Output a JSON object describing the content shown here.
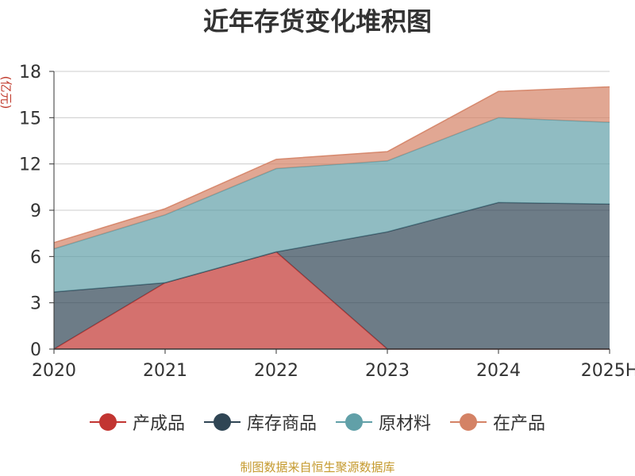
{
  "chart_data": {
    "type": "area",
    "stacked": true,
    "title": "近年存货变化堆积图",
    "ylabel": "(亿元)",
    "xlabel": "",
    "x": [
      "2020",
      "2021",
      "2022",
      "2023",
      "2024",
      "2025H"
    ],
    "ylim": [
      0,
      18
    ],
    "yticks": [
      "0",
      "3",
      "6",
      "9",
      "12",
      "15",
      "18"
    ],
    "grid": true,
    "legend_position": "bottom",
    "series": [
      {
        "name": "产成品",
        "color": "#c23531",
        "values": [
          0.0,
          4.3,
          6.3,
          0.0,
          0.0,
          0.0
        ]
      },
      {
        "name": "库存商品",
        "color": "#2f4554",
        "values": [
          3.7,
          0.0,
          0.0,
          7.6,
          9.5,
          9.4
        ]
      },
      {
        "name": "原材料",
        "color": "#61a0a8",
        "values": [
          2.8,
          4.4,
          5.4,
          4.6,
          5.5,
          5.3
        ]
      },
      {
        "name": "在产品",
        "color": "#d48265",
        "values": [
          0.4,
          0.4,
          0.6,
          0.6,
          1.7,
          2.3
        ]
      }
    ]
  },
  "source_note": "制图数据来自恒生聚源数据库"
}
